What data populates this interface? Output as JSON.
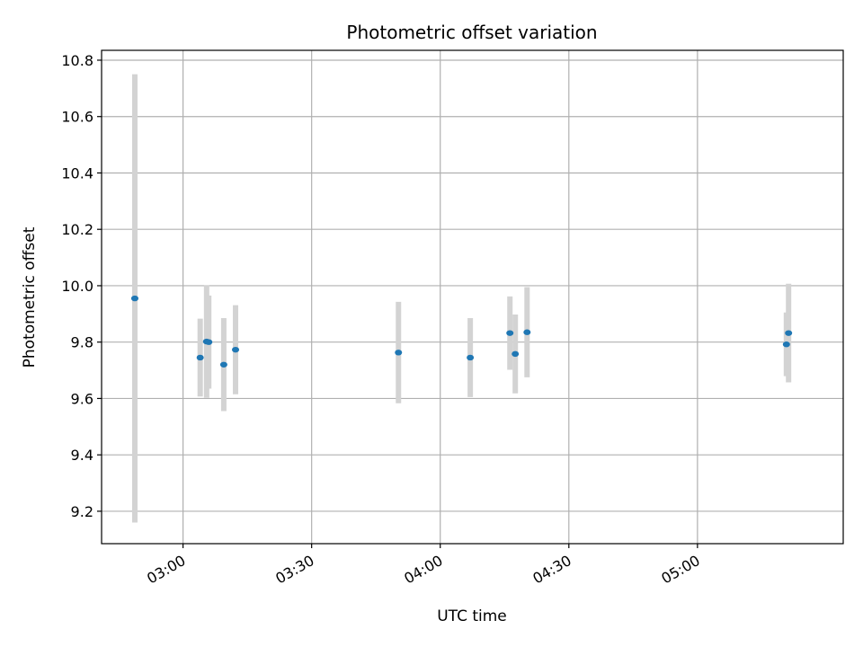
{
  "chart_data": {
    "type": "scatter",
    "title": "Photometric offset variation",
    "xlabel": "UTC time",
    "ylabel": "Photometric offset",
    "xlim": [
      "02:41",
      "05:34"
    ],
    "ylim": [
      9.085,
      10.835
    ],
    "x_ticks": [
      "03:00",
      "03:30",
      "04:00",
      "04:30",
      "05:00"
    ],
    "y_ticks": [
      "9.2",
      "9.4",
      "9.6",
      "9.8",
      "10.0",
      "10.2",
      "10.4",
      "10.6",
      "10.8"
    ],
    "grid": true,
    "marker_color": "#1f77b4",
    "errorbar_color": "#d3d3d3",
    "points": [
      {
        "x": "02:48:45",
        "y": 9.955,
        "err": 0.795
      },
      {
        "x": "03:04:00",
        "y": 9.745,
        "err": 0.138
      },
      {
        "x": "03:05:30",
        "y": 9.802,
        "err": 0.2
      },
      {
        "x": "03:06:00",
        "y": 9.8,
        "err": 0.165
      },
      {
        "x": "03:09:30",
        "y": 9.72,
        "err": 0.165
      },
      {
        "x": "03:12:15",
        "y": 9.773,
        "err": 0.158
      },
      {
        "x": "03:50:15",
        "y": 9.763,
        "err": 0.18
      },
      {
        "x": "04:07:00",
        "y": 9.745,
        "err": 0.14
      },
      {
        "x": "04:16:15",
        "y": 9.832,
        "err": 0.13
      },
      {
        "x": "04:17:30",
        "y": 9.758,
        "err": 0.14
      },
      {
        "x": "04:20:15",
        "y": 9.835,
        "err": 0.16
      },
      {
        "x": "05:20:45",
        "y": 9.792,
        "err": 0.113
      },
      {
        "x": "05:21:15",
        "y": 9.832,
        "err": 0.175
      }
    ]
  }
}
